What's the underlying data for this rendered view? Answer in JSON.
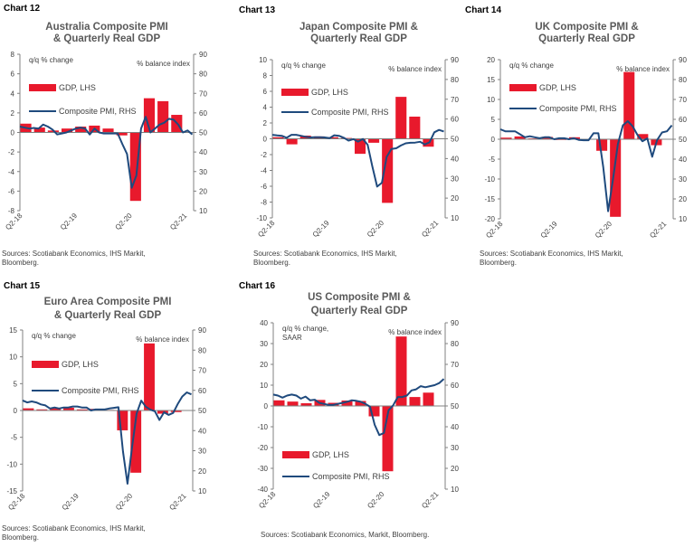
{
  "colors": {
    "gdp": "#e8192c",
    "pmi": "#1f4a7d",
    "axis": "#808080",
    "title": "#595959"
  },
  "x_tick_labels": [
    "Q2-18",
    "Q2-19",
    "Q2-20",
    "Q2-21"
  ],
  "chart_data": [
    {
      "type": "bar+line",
      "label": "Chart 12",
      "title": [
        "Australia Composite PMI",
        "& Quarterly Real GDP"
      ],
      "left_label": [
        "q/q % change"
      ],
      "right_label": "% balance index",
      "ylim_left": [
        -8,
        8
      ],
      "yticks_left": [
        -8,
        -6,
        -4,
        -2,
        0,
        2,
        4,
        6,
        8
      ],
      "ylim_right": [
        10,
        90
      ],
      "yticks_right": [
        10,
        20,
        30,
        40,
        50,
        60,
        70,
        80,
        90
      ],
      "legend": [
        "GDP, LHS",
        "Composite PMI, RHS"
      ],
      "gdp_quarters": [
        "Q2-18",
        "Q3-18",
        "Q4-18",
        "Q1-19",
        "Q2-19",
        "Q3-19",
        "Q4-19",
        "Q1-20",
        "Q2-20",
        "Q3-20",
        "Q4-20",
        "Q1-21"
      ],
      "gdp": [
        0.9,
        0.5,
        0.2,
        0.4,
        0.6,
        0.7,
        0.4,
        -0.3,
        -7.0,
        3.5,
        3.2,
        1.8
      ],
      "pmi_start": "Apr-18",
      "pmi": [
        53,
        52.5,
        52,
        52.3,
        52,
        54,
        53,
        51.5,
        49,
        49.5,
        50,
        51,
        52,
        52.5,
        52,
        49,
        52,
        50,
        49.5,
        49.5,
        49.5,
        49.5,
        44,
        39,
        21.7,
        28,
        52,
        58,
        50,
        52,
        54,
        55,
        57,
        56.5,
        54,
        50,
        51,
        49
      ],
      "source": [
        "Sources: Scotiabank Economics, IHS Markit,",
        "Bloomberg."
      ]
    },
    {
      "type": "bar+line",
      "label": "Chart 13",
      "title": [
        "Japan Composite PMI &",
        "Quarterly Real GDP"
      ],
      "left_label": [
        "q/q % change"
      ],
      "right_label": "% balance index",
      "ylim_left": [
        -10,
        10
      ],
      "yticks_left": [
        -10,
        -8,
        -6,
        -4,
        -2,
        0,
        2,
        4,
        6,
        8,
        10
      ],
      "ylim_right": [
        10,
        90
      ],
      "yticks_right": [
        10,
        20,
        30,
        40,
        50,
        60,
        70,
        80,
        90
      ],
      "legend": [
        "GDP, LHS",
        "Composite PMI, RHS"
      ],
      "gdp_quarters": [
        "Q2-18",
        "Q3-18",
        "Q4-18",
        "Q1-19",
        "Q2-19",
        "Q3-19",
        "Q4-19",
        "Q1-20",
        "Q2-20",
        "Q3-20",
        "Q4-20",
        "Q1-21"
      ],
      "gdp": [
        0.2,
        -0.7,
        0.4,
        0.3,
        0.2,
        0.1,
        -1.9,
        -0.5,
        -8.1,
        5.3,
        2.8,
        -1.0
      ],
      "pmi_start": "Apr-18",
      "pmi": [
        52,
        51.7,
        51.5,
        50.5,
        52,
        52,
        51.5,
        51,
        50.7,
        50.8,
        50.8,
        50.7,
        50.3,
        51.8,
        51.5,
        50.5,
        49.1,
        49.8,
        48.6,
        49.9,
        47,
        36,
        25.8,
        27.8,
        40.8,
        44.9,
        45.2,
        46.6,
        47.7,
        48,
        48.1,
        48.5,
        47.1,
        48.2,
        53.3,
        54.5,
        53.7
      ],
      "source": [
        "Sources: Scotiabank Economics, IHS Markit,",
        "Bloomberg."
      ]
    },
    {
      "type": "bar+line",
      "label": "Chart 14",
      "title": [
        "UK Composite PMI &",
        "Quarterly Real GDP"
      ],
      "left_label": [
        "q/q % change"
      ],
      "right_label": "% balance index",
      "ylim_left": [
        -20,
        20
      ],
      "yticks_left": [
        -20,
        -15,
        -10,
        -5,
        0,
        5,
        10,
        15,
        20
      ],
      "ylim_right": [
        10,
        90
      ],
      "yticks_right": [
        10,
        20,
        30,
        40,
        50,
        60,
        70,
        80,
        90
      ],
      "legend": [
        "GDP, LHS",
        "Composite PMI, RHS"
      ],
      "gdp_quarters": [
        "Q2-18",
        "Q3-18",
        "Q4-18",
        "Q1-19",
        "Q2-19",
        "Q3-19",
        "Q4-19",
        "Q1-20",
        "Q2-20",
        "Q3-20",
        "Q4-20",
        "Q1-21"
      ],
      "gdp": [
        0.4,
        0.7,
        0.2,
        0.6,
        0.0,
        0.5,
        0.1,
        -2.9,
        -19.5,
        16.9,
        1.3,
        -1.5
      ],
      "pmi_start": "Apr-18",
      "pmi": [
        55,
        54,
        54,
        54,
        52.5,
        51,
        51.5,
        51,
        50.5,
        51,
        51,
        50,
        50.5,
        50.5,
        50,
        50.5,
        49.7,
        49.5,
        49.5,
        53,
        53,
        36,
        13.8,
        30,
        47.7,
        57,
        59.1,
        56.5,
        52.1,
        49,
        50.4,
        41.2,
        49.6,
        53.4,
        54,
        57
      ],
      "source": [
        "Sources: Scotiabank Economics, IHS Markit,",
        "Bloomberg."
      ]
    },
    {
      "type": "bar+line",
      "label": "Chart 15",
      "title": [
        "Euro Area Composite PMI",
        "& Quarterly Real GDP"
      ],
      "left_label": [
        "q/q % change"
      ],
      "right_label": "% balance index",
      "ylim_left": [
        -15,
        15
      ],
      "yticks_left": [
        -15,
        -10,
        -5,
        0,
        5,
        10,
        15
      ],
      "ylim_right": [
        10,
        90
      ],
      "yticks_right": [
        10,
        20,
        30,
        40,
        50,
        60,
        70,
        80,
        90
      ],
      "legend": [
        "GDP, LHS",
        "Composite PMI, RHS"
      ],
      "gdp_quarters": [
        "Q2-18",
        "Q3-18",
        "Q4-18",
        "Q1-19",
        "Q2-19",
        "Q3-19",
        "Q4-19",
        "Q1-20",
        "Q2-20",
        "Q3-20",
        "Q4-20",
        "Q1-21"
      ],
      "gdp": [
        0.4,
        0.2,
        0.4,
        0.5,
        0.2,
        0.3,
        0.1,
        -3.7,
        -11.6,
        12.5,
        -0.6,
        -0.3
      ],
      "pmi_start": "Apr-18",
      "pmi": [
        55,
        54,
        54.5,
        54,
        53,
        52.5,
        51,
        51.5,
        51,
        51.5,
        51.5,
        52,
        52,
        51.5,
        51.5,
        50,
        50.5,
        50.5,
        50.5,
        51,
        51.3,
        51.6,
        29.7,
        13.6,
        31.9,
        48.5,
        54.9,
        51.9,
        50.4,
        49.6,
        45.3,
        49.1,
        47.8,
        48.8,
        53.2,
        56.9,
        59,
        58
      ],
      "source": [
        "Sources: Scotiabank Economics, IHS Markit,",
        "Bloomberg."
      ]
    },
    {
      "type": "bar+line",
      "label": "Chart 16",
      "title": [
        "US Composite PMI &",
        "Quarterly Real GDP"
      ],
      "left_label": [
        "q/q % change,",
        "SAAR"
      ],
      "right_label": "% balance index",
      "ylim_left": [
        -40,
        40
      ],
      "yticks_left": [
        -40,
        -30,
        -20,
        -10,
        0,
        10,
        20,
        30,
        40
      ],
      "ylim_right": [
        10,
        90
      ],
      "yticks_right": [
        10,
        20,
        30,
        40,
        50,
        60,
        70,
        80,
        90
      ],
      "legend": [
        "GDP, LHS",
        "Composite PMI, RHS"
      ],
      "gdp_quarters": [
        "Q2-18",
        "Q3-18",
        "Q4-18",
        "Q1-19",
        "Q2-19",
        "Q3-19",
        "Q4-19",
        "Q1-20",
        "Q2-20",
        "Q3-20",
        "Q4-20",
        "Q1-21"
      ],
      "gdp": [
        2.7,
        2.1,
        1.3,
        2.9,
        1.5,
        2.6,
        2.4,
        -5.0,
        -31.4,
        33.4,
        4.3,
        6.4
      ],
      "pmi_start": "Apr-18",
      "pmi": [
        55.5,
        55,
        54,
        55,
        55.5,
        55,
        53.5,
        54.5,
        52.7,
        53,
        51.5,
        51,
        50.5,
        50.5,
        51,
        51.5,
        52,
        52.7,
        52.5,
        52,
        51,
        49.6,
        40.9,
        36,
        37,
        47.9,
        50.3,
        54.3,
        54.3,
        55,
        57.5,
        58,
        59.5,
        59,
        59.5,
        60,
        61,
        63
      ],
      "source": [
        "Sources: Scotiabank Economics, Markit, Bloomberg."
      ]
    }
  ]
}
